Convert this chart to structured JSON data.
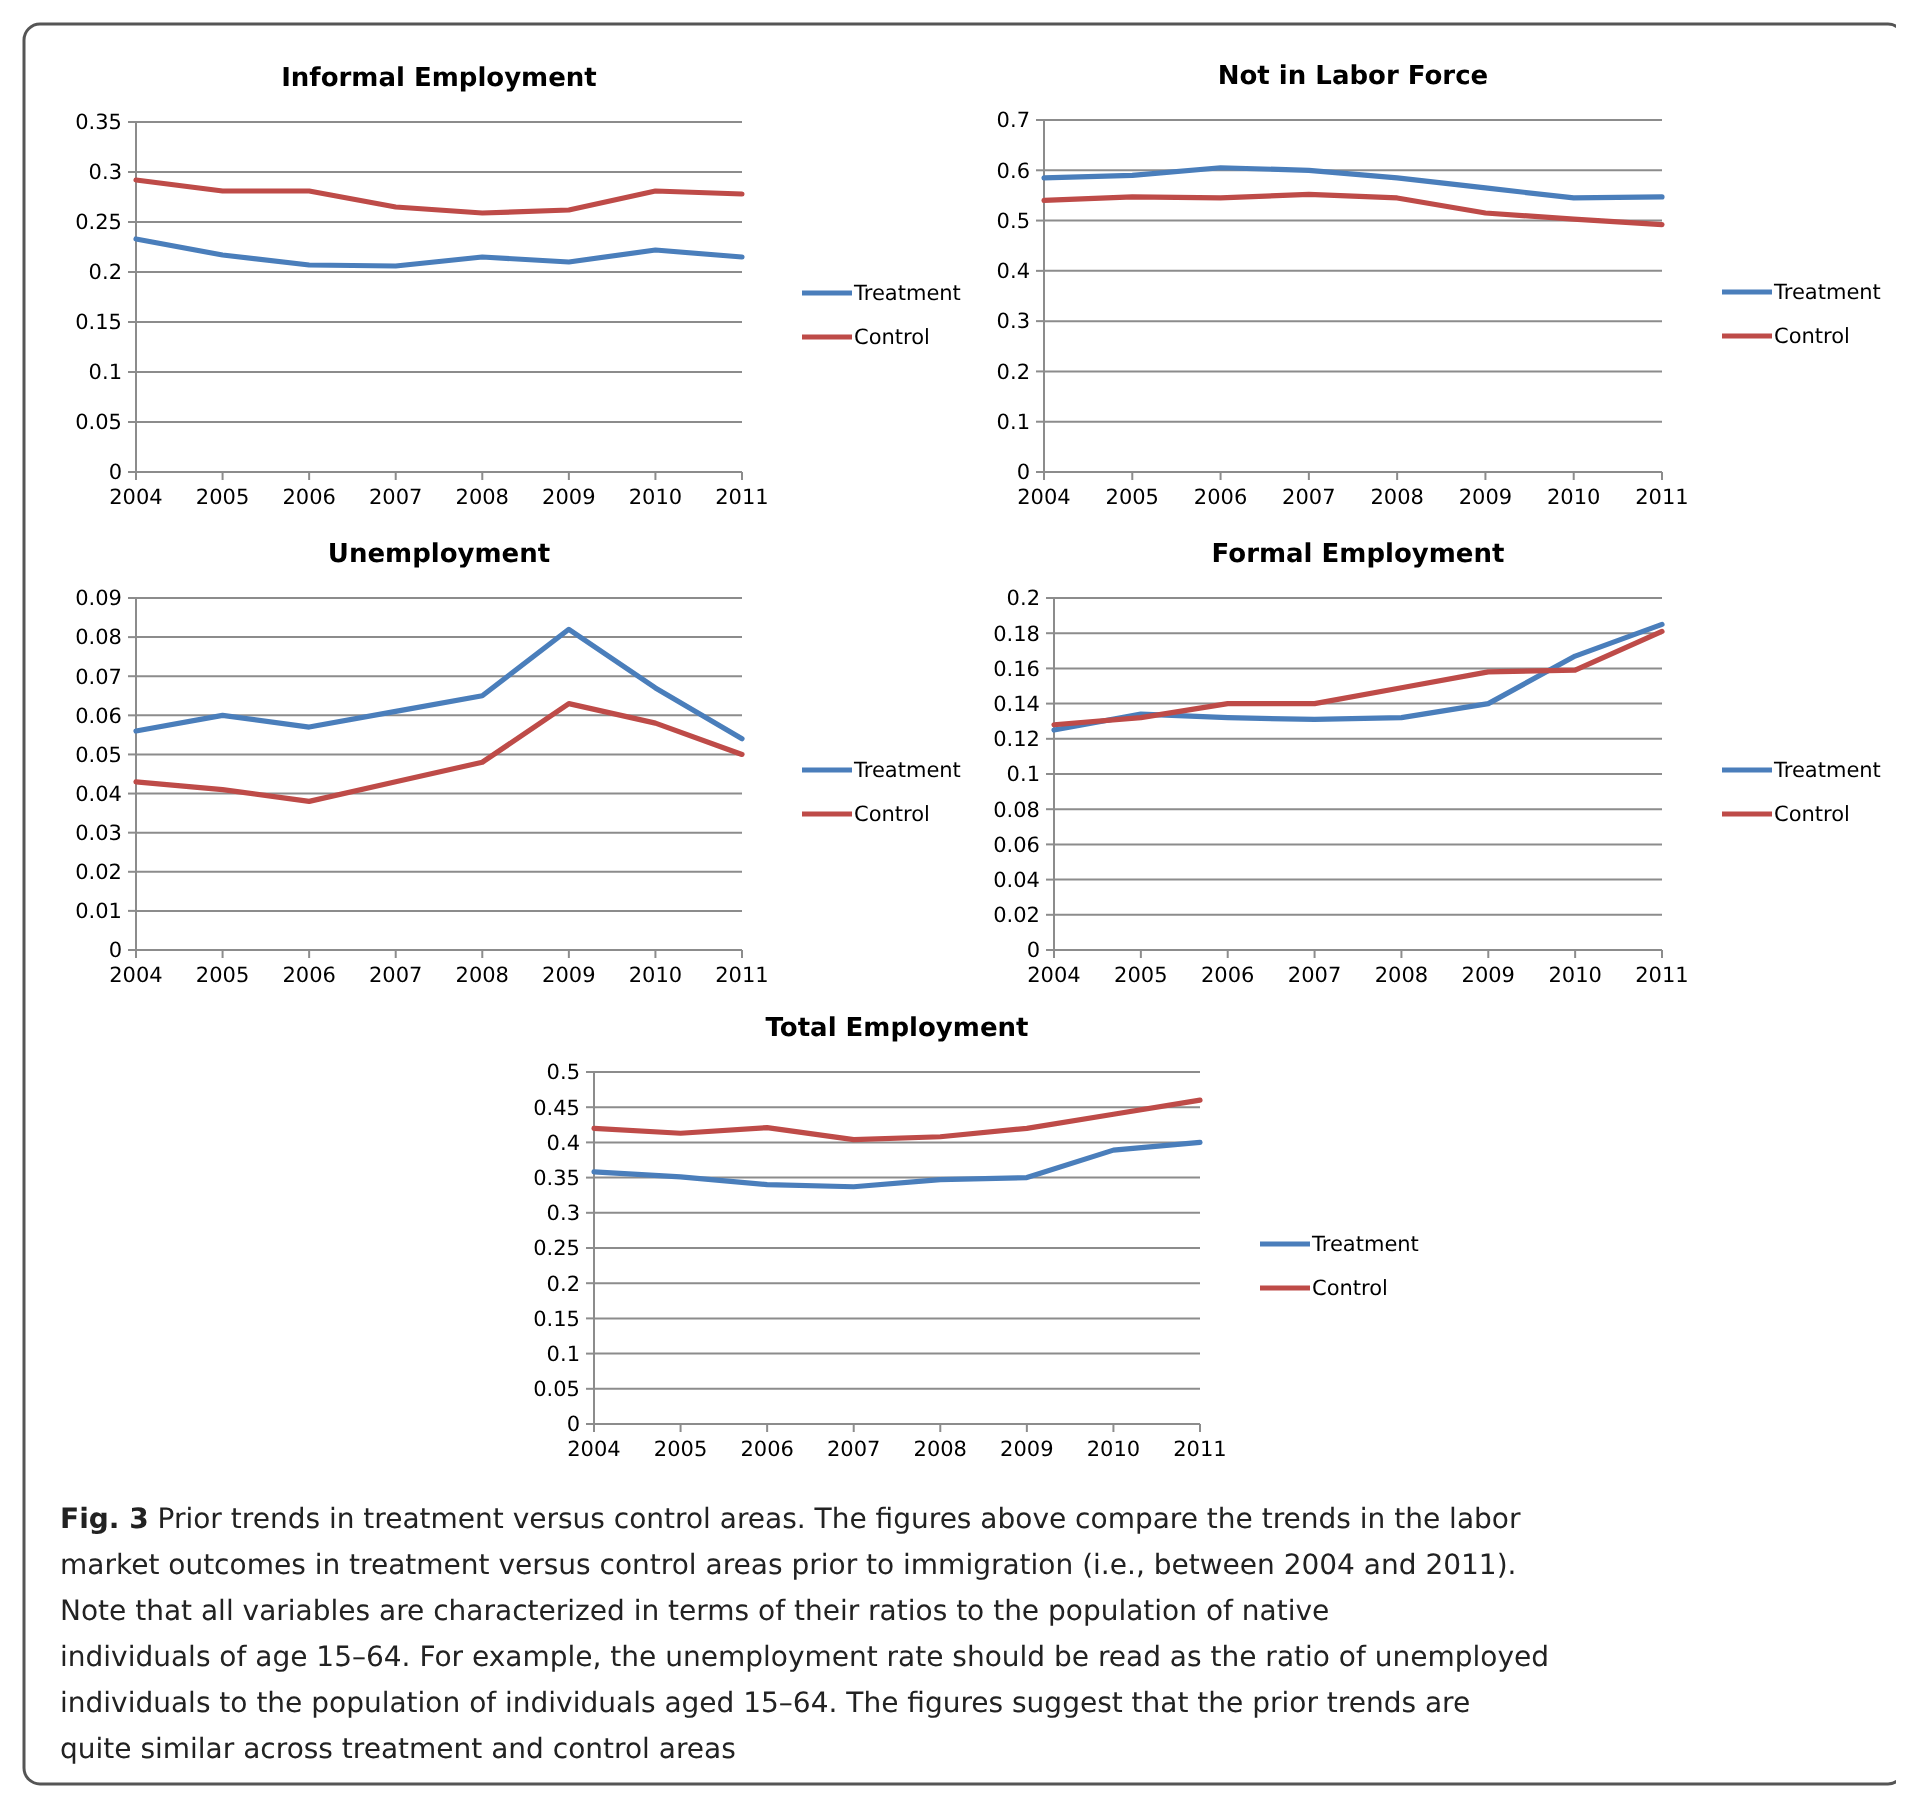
{
  "chart_data": [
    {
      "type": "line",
      "title": "Informal Employment",
      "x": [
        2004,
        2005,
        2006,
        2007,
        2008,
        2009,
        2010,
        2011
      ],
      "xlim": [
        2004,
        2011
      ],
      "xticks": [
        2004,
        2005,
        2006,
        2007,
        2008,
        2009,
        2010,
        2011
      ],
      "ylim": [
        0,
        0.35
      ],
      "yticks": [
        0,
        0.05,
        0.1,
        0.15,
        0.2,
        0.25,
        0.3,
        0.35
      ],
      "grid": "y",
      "legend": "right",
      "series": [
        {
          "name": "Treatment",
          "color": "#4a7ebb",
          "values": [
            0.233,
            0.217,
            0.207,
            0.206,
            0.215,
            0.21,
            0.222,
            0.215
          ]
        },
        {
          "name": "Control",
          "color": "#be4b48",
          "values": [
            0.292,
            0.281,
            0.281,
            0.265,
            0.259,
            0.262,
            0.281,
            0.278
          ]
        }
      ]
    },
    {
      "type": "line",
      "title": "Not in Labor Force",
      "x": [
        2004,
        2005,
        2006,
        2007,
        2008,
        2009,
        2010,
        2011
      ],
      "xlim": [
        2004,
        2011
      ],
      "xticks": [
        2004,
        2005,
        2006,
        2007,
        2008,
        2009,
        2010,
        2011
      ],
      "ylim": [
        0,
        0.7
      ],
      "yticks": [
        0,
        0.1,
        0.2,
        0.3,
        0.4,
        0.5,
        0.6,
        0.7
      ],
      "grid": "y",
      "legend": "right",
      "series": [
        {
          "name": "Treatment",
          "color": "#4a7ebb",
          "values": [
            0.585,
            0.59,
            0.605,
            0.6,
            0.585,
            0.565,
            0.545,
            0.547
          ]
        },
        {
          "name": "Control",
          "color": "#be4b48",
          "values": [
            0.54,
            0.547,
            0.545,
            0.552,
            0.545,
            0.515,
            0.503,
            0.492
          ]
        }
      ]
    },
    {
      "type": "line",
      "title": "Unemployment",
      "x": [
        2004,
        2005,
        2006,
        2007,
        2008,
        2009,
        2010,
        2011
      ],
      "xlim": [
        2004,
        2011
      ],
      "xticks": [
        2004,
        2005,
        2006,
        2007,
        2008,
        2009,
        2010,
        2011
      ],
      "ylim": [
        0,
        0.09
      ],
      "yticks": [
        0,
        0.01,
        0.02,
        0.03,
        0.04,
        0.05,
        0.06,
        0.07,
        0.08,
        0.09
      ],
      "grid": "y",
      "legend": "right",
      "series": [
        {
          "name": "Treatment",
          "color": "#4a7ebb",
          "values": [
            0.056,
            0.06,
            0.057,
            0.061,
            0.065,
            0.082,
            0.067,
            0.054
          ]
        },
        {
          "name": "Control",
          "color": "#be4b48",
          "values": [
            0.043,
            0.041,
            0.038,
            0.043,
            0.048,
            0.063,
            0.058,
            0.05
          ]
        }
      ]
    },
    {
      "type": "line",
      "title": "Formal Employment",
      "x": [
        2004,
        2005,
        2006,
        2007,
        2008,
        2009,
        2010,
        2011
      ],
      "xlim": [
        2004,
        2011
      ],
      "xticks": [
        2004,
        2005,
        2006,
        2007,
        2008,
        2009,
        2010,
        2011
      ],
      "ylim": [
        0,
        0.2
      ],
      "yticks": [
        0,
        0.02,
        0.04,
        0.06,
        0.08,
        0.1,
        0.12,
        0.14,
        0.16,
        0.18,
        0.2
      ],
      "grid": "y",
      "legend": "right",
      "series": [
        {
          "name": "Treatment",
          "color": "#4a7ebb",
          "values": [
            0.125,
            0.134,
            0.132,
            0.131,
            0.132,
            0.14,
            0.167,
            0.185
          ]
        },
        {
          "name": "Control",
          "color": "#be4b48",
          "values": [
            0.128,
            0.132,
            0.14,
            0.14,
            0.149,
            0.158,
            0.159,
            0.181
          ]
        }
      ]
    },
    {
      "type": "line",
      "title": "Total Employment",
      "x": [
        2004,
        2005,
        2006,
        2007,
        2008,
        2009,
        2010,
        2011
      ],
      "xlim": [
        2004,
        2011
      ],
      "xticks": [
        2004,
        2005,
        2006,
        2007,
        2008,
        2009,
        2010,
        2011
      ],
      "ylim": [
        0,
        0.5
      ],
      "yticks": [
        0,
        0.05,
        0.1,
        0.15,
        0.2,
        0.25,
        0.3,
        0.35,
        0.4,
        0.45,
        0.5
      ],
      "grid": "y",
      "legend": "right",
      "annotations": [
        "Fig. 3 Prior trends in treatment versus control areas. The figures above compare the trends in the labor market outcomes in treatment versus control areas prior to immigration (i.e., between 2004 and 2011). Note that all variables are characterized in terms of their ratios to the population of native individuals of age 15–64. For example, the unemployment rate should be read as the ratio of unemployed individuals to the population of individuals aged 15–64. The figures suggest that the prior trends are quite similar across treatment and control areas"
      ],
      "series": [
        {
          "name": "Treatment",
          "color": "#4a7ebb",
          "values": [
            0.358,
            0.351,
            0.34,
            0.337,
            0.347,
            0.35,
            0.389,
            0.4
          ]
        },
        {
          "name": "Control",
          "color": "#be4b48",
          "values": [
            0.42,
            0.413,
            0.421,
            0.404,
            0.408,
            0.42,
            0.44,
            0.46
          ]
        }
      ]
    }
  ]
}
